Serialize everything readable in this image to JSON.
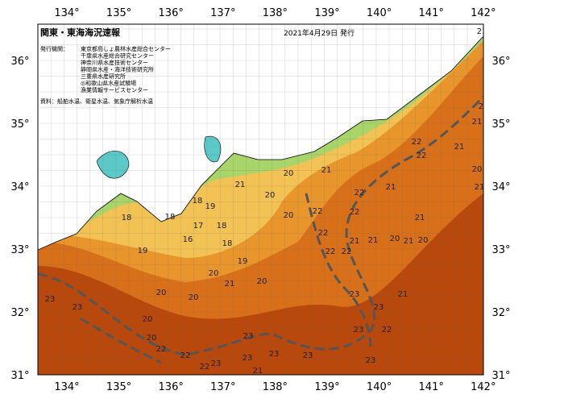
{
  "header": {
    "title": "関東・東海海況速報",
    "date": "2021年4月29日 発行"
  },
  "issuers_label": "発行機関：",
  "issuers": [
    "東京都島しょ農林水産総合センター",
    "千葉県水産総合研究センター",
    "神奈川県水産技術センター",
    "静岡県水産・海洋技術研究所",
    "三重県水産研究所",
    "◎和歌山県水産試験場",
    "漁業情報サービスセンター"
  ],
  "source": "資料：船舶水温、衛星水温、気象庁解析水温",
  "lon_labels": [
    "134°",
    "135°",
    "136°",
    "137°",
    "138°",
    "139°",
    "140°",
    "141°",
    "142°"
  ],
  "lat_labels": [
    "36°",
    "35°",
    "34°",
    "33°",
    "32°",
    "31°"
  ],
  "isotherm_labels": [
    21,
    20,
    21,
    22,
    21,
    22,
    20,
    21,
    21,
    20,
    22,
    21,
    20,
    21,
    18,
    19,
    18,
    18,
    22,
    22,
    20,
    21,
    17,
    18,
    16,
    18,
    19,
    22,
    21,
    21,
    20,
    21,
    20,
    22,
    22,
    19,
    20,
    20,
    21,
    20,
    20,
    23,
    23,
    21,
    23,
    23,
    20,
    23,
    22,
    20,
    22,
    23,
    23,
    22,
    23,
    23,
    23,
    23,
    22,
    21
  ]
}
